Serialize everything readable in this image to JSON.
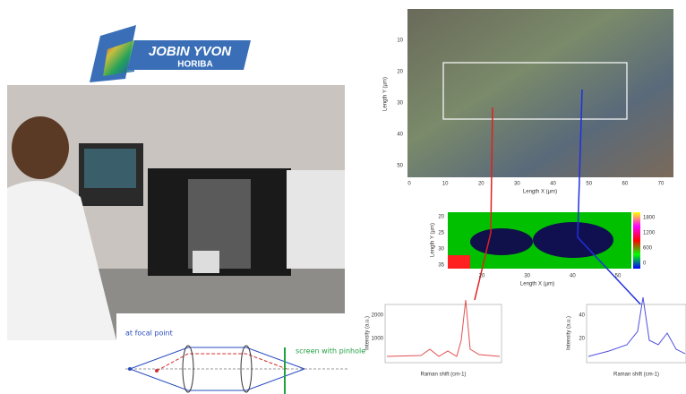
{
  "logo": {
    "brand": "JOBIN YVON",
    "sub": "HORIBA"
  },
  "diagram": {
    "left_label": "at focal point",
    "right_label": "screen with pinhole"
  },
  "map": {
    "x_label": "Length X (µm)",
    "y_label": "Length Y (µm)",
    "xticks": [
      0,
      10,
      20,
      30,
      40,
      50,
      60,
      70
    ],
    "yticks": [
      10,
      20,
      30,
      40,
      50
    ]
  },
  "line_map": {
    "x_label": "Length X (µm)",
    "y_label": "Length Y (µm)",
    "xticks": [
      20,
      30,
      40,
      50
    ],
    "yticks": [
      20,
      25,
      30,
      35
    ],
    "colorbar_ticks": [
      1800,
      1200,
      600,
      0
    ]
  },
  "spectra": [
    {
      "x_label": "Raman shift (cm-1)",
      "y_label": "Intensity (a.u.)",
      "yticks": [
        1000,
        2000
      ]
    },
    {
      "x_label": "Raman shift (cm-1)",
      "y_label": "Intensity (a.u.)",
      "yticks": [
        20,
        40
      ]
    }
  ]
}
